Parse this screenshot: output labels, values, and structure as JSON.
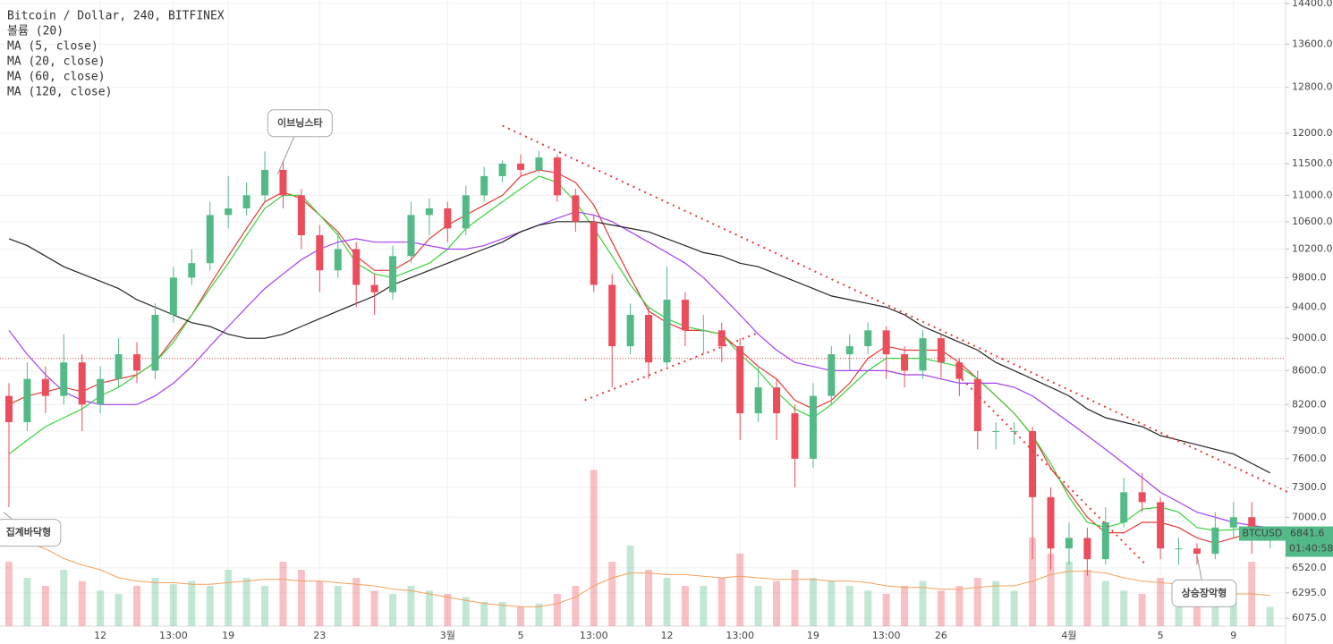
{
  "chart_data": {
    "type": "candlestick",
    "title": "Bitcoin / Dollar, 240, BITFINEX",
    "log_scale": true,
    "grid": true,
    "ylim": [
      6008,
      14470
    ],
    "yticks": [
      {
        "value": 14400,
        "label": "14400.0"
      },
      {
        "value": 13600,
        "label": "13600.0"
      },
      {
        "value": 12800,
        "label": "12800.0"
      },
      {
        "value": 12000,
        "label": "12000.0"
      },
      {
        "value": 11500,
        "label": "11500.0"
      },
      {
        "value": 11000,
        "label": "11000.0"
      },
      {
        "value": 10600,
        "label": "10600.0"
      },
      {
        "value": 10200,
        "label": "10200.0"
      },
      {
        "value": 9800,
        "label": "9800.0"
      },
      {
        "value": 9400,
        "label": "9400.0"
      },
      {
        "value": 9000,
        "label": "9000.0"
      },
      {
        "value": 8600,
        "label": "8600.0"
      },
      {
        "value": 8200,
        "label": "8200.0"
      },
      {
        "value": 7900,
        "label": "7900.0"
      },
      {
        "value": 7600,
        "label": "7600.0"
      },
      {
        "value": 7300,
        "label": "7300.0"
      },
      {
        "value": 7000,
        "label": "7000.0"
      },
      {
        "value": 6520,
        "label": "6520.0"
      },
      {
        "value": 6295,
        "label": "6295.0"
      },
      {
        "value": 6075,
        "label": "6075.0"
      }
    ],
    "categories": [
      null,
      null,
      null,
      null,
      null,
      "12",
      null,
      null,
      null,
      "13:00",
      null,
      null,
      "19",
      null,
      null,
      null,
      null,
      "23",
      null,
      null,
      null,
      null,
      null,
      null,
      "3월",
      null,
      null,
      null,
      "5",
      null,
      null,
      null,
      "13:00",
      null,
      null,
      null,
      "12",
      null,
      null,
      null,
      "13:00",
      null,
      null,
      null,
      "19",
      null,
      null,
      null,
      "13:00",
      null,
      null,
      "26",
      null,
      null,
      null,
      null,
      null,
      null,
      "4월",
      null,
      null,
      null,
      null,
      "5",
      null,
      null,
      null,
      "9",
      null,
      null
    ],
    "candles": {
      "up_color": "#53b987",
      "down_color": "#eb4d5c",
      "open": [
        8300,
        8000,
        8500,
        8300,
        8700,
        8200,
        8500,
        8800,
        8600,
        9300,
        9800,
        10000,
        10700,
        10800,
        11000,
        11400,
        11000,
        10400,
        9900,
        10200,
        9700,
        9600,
        10100,
        10700,
        10800,
        10500,
        11000,
        11300,
        11500,
        11400,
        11600,
        11000,
        10600,
        9700,
        8900,
        9300,
        8700,
        9500,
        9100,
        9100,
        8900,
        8100,
        8400,
        8100,
        7600,
        8300,
        8800,
        8900,
        9100,
        8800,
        8600,
        9000,
        8700,
        8500,
        7900,
        7900,
        7900,
        7200,
        6700,
        6800,
        6600,
        6950,
        7250,
        7150,
        6700,
        6700,
        6650,
        6900,
        7000,
        6800
      ],
      "high": [
        8450,
        8700,
        8650,
        9050,
        8800,
        8650,
        9000,
        8950,
        9450,
        9950,
        10200,
        10900,
        11300,
        11200,
        11700,
        11550,
        11100,
        10550,
        10450,
        10300,
        9850,
        10250,
        10900,
        10950,
        10900,
        11150,
        11450,
        11550,
        11650,
        11700,
        11650,
        11100,
        10700,
        9850,
        9450,
        9400,
        9950,
        9600,
        9300,
        9200,
        9000,
        8650,
        8500,
        8200,
        8450,
        8900,
        9050,
        9200,
        9150,
        8900,
        9100,
        9050,
        8750,
        8600,
        8000,
        8000,
        7950,
        7300,
        6950,
        6900,
        7100,
        7400,
        7450,
        7200,
        6800,
        6750,
        7050,
        7150,
        7150,
        6900
      ],
      "low": [
        7100,
        7900,
        8100,
        8200,
        7900,
        8100,
        8400,
        8450,
        8500,
        9200,
        9700,
        9900,
        10500,
        10700,
        10900,
        10800,
        10200,
        9600,
        9800,
        9400,
        9300,
        9500,
        10000,
        10400,
        10300,
        10400,
        10900,
        11200,
        11300,
        11350,
        10900,
        10450,
        9600,
        8400,
        8800,
        8500,
        8650,
        8900,
        8800,
        8700,
        7800,
        8000,
        7800,
        7300,
        7500,
        8200,
        8600,
        8800,
        8500,
        8400,
        8500,
        8500,
        8300,
        7700,
        7700,
        7750,
        6600,
        6500,
        6550,
        6450,
        6550,
        6900,
        7050,
        6600,
        6550,
        6550,
        6600,
        6800,
        6650,
        6700
      ],
      "close": [
        8000,
        8500,
        8300,
        8700,
        8200,
        8500,
        8800,
        8600,
        9300,
        9800,
        10000,
        10700,
        10800,
        11000,
        11400,
        11000,
        10400,
        9900,
        10200,
        9700,
        9600,
        10100,
        10700,
        10800,
        10500,
        11000,
        11300,
        11500,
        11400,
        11600,
        11000,
        10600,
        9700,
        8900,
        9300,
        8700,
        9500,
        9100,
        9100,
        8900,
        8100,
        8400,
        8100,
        7600,
        8300,
        8800,
        8900,
        9100,
        8800,
        8600,
        9000,
        8700,
        8500,
        7900,
        7900,
        7900,
        7200,
        6700,
        6800,
        6600,
        6950,
        7250,
        7150,
        6700,
        6700,
        6650,
        6900,
        7000,
        6800,
        6840
      ]
    },
    "series": [
      {
        "name": "MA (5, close)",
        "color": "#e53935",
        "values": [
          8200,
          8300,
          8350,
          8400,
          8350,
          8450,
          8500,
          8550,
          8700,
          9000,
          9300,
          9700,
          10100,
          10500,
          10900,
          11050,
          10950,
          10700,
          10450,
          10100,
          9900,
          9900,
          10050,
          10350,
          10550,
          10700,
          10850,
          11000,
          11300,
          11400,
          11350,
          11200,
          10850,
          10300,
          9800,
          9350,
          9200,
          9100,
          9100,
          9050,
          8850,
          8650,
          8500,
          8250,
          8150,
          8250,
          8450,
          8750,
          8900,
          8850,
          8850,
          8850,
          8700,
          8500,
          8300,
          8100,
          7850,
          7500,
          7250,
          7000,
          6850,
          6850,
          6950,
          6950,
          6900,
          6800,
          6750,
          6800,
          6850,
          6860
        ]
      },
      {
        "name": "MA (20, close)",
        "color": "#3ad13a",
        "values": [
          7650,
          7800,
          7950,
          8050,
          8150,
          8300,
          8400,
          8550,
          8700,
          8950,
          9300,
          9650,
          10000,
          10400,
          10800,
          11000,
          11000,
          10700,
          10400,
          10000,
          9850,
          9800,
          9900,
          10000,
          10200,
          10500,
          10700,
          10900,
          11100,
          11300,
          11200,
          10900,
          10500,
          10100,
          9700,
          9400,
          9250,
          9150,
          9100,
          9050,
          8800,
          8600,
          8350,
          8150,
          8050,
          8200,
          8400,
          8600,
          8750,
          8750,
          8750,
          8700,
          8650,
          8500,
          8300,
          8100,
          7850,
          7550,
          7200,
          6950,
          6900,
          6950,
          7080,
          7100,
          7050,
          6900,
          6870,
          6880,
          6900,
          6900
        ]
      },
      {
        "name": "MA (60, close)",
        "color": "#a43ef0",
        "values": [
          9100,
          8800,
          8550,
          8350,
          8250,
          8200,
          8200,
          8200,
          8300,
          8450,
          8650,
          8900,
          9150,
          9400,
          9650,
          9850,
          10050,
          10200,
          10300,
          10350,
          10300,
          10300,
          10300,
          10250,
          10200,
          10200,
          10250,
          10350,
          10450,
          10550,
          10650,
          10750,
          10700,
          10600,
          10450,
          10300,
          10150,
          10000,
          9800,
          9550,
          9300,
          9050,
          8850,
          8700,
          8650,
          8600,
          8600,
          8600,
          8600,
          8550,
          8550,
          8500,
          8450,
          8450,
          8450,
          8400,
          8300,
          8150,
          8000,
          7850,
          7700,
          7550,
          7400,
          7250,
          7150,
          7050,
          7000,
          6950,
          6920,
          6900
        ]
      },
      {
        "name": "MA (120, close)",
        "color": "#222222",
        "values": [
          10350,
          10250,
          10100,
          9950,
          9850,
          9750,
          9650,
          9500,
          9400,
          9300,
          9200,
          9150,
          9050,
          9000,
          9000,
          9050,
          9150,
          9250,
          9350,
          9450,
          9550,
          9700,
          9800,
          9900,
          10000,
          10100,
          10200,
          10300,
          10450,
          10550,
          10600,
          10600,
          10600,
          10550,
          10500,
          10450,
          10350,
          10250,
          10150,
          10100,
          10000,
          9950,
          9850,
          9750,
          9650,
          9550,
          9500,
          9450,
          9400,
          9300,
          9150,
          9050,
          8950,
          8850,
          8700,
          8600,
          8500,
          8400,
          8300,
          8150,
          8050,
          8000,
          7950,
          7850,
          7800,
          7750,
          7700,
          7650,
          7550,
          7450
        ]
      }
    ],
    "volume": {
      "name": "볼륨 (20)",
      "ylim": [
        0,
        100
      ],
      "ma_color": "#f5a05a",
      "values": [
        40,
        30,
        25,
        35,
        28,
        22,
        20,
        25,
        30,
        26,
        28,
        25,
        35,
        30,
        25,
        40,
        35,
        28,
        25,
        30,
        22,
        20,
        25,
        22,
        20,
        18,
        15,
        15,
        12,
        14,
        20,
        25,
        97,
        40,
        50,
        35,
        30,
        25,
        25,
        30,
        45,
        25,
        28,
        35,
        30,
        28,
        25,
        22,
        20,
        25,
        28,
        22,
        25,
        30,
        28,
        22,
        55,
        45,
        40,
        35,
        28,
        22,
        20,
        30,
        25,
        22,
        18,
        15,
        40,
        12
      ],
      "ma": [
        55,
        52,
        48,
        42,
        38,
        35,
        30,
        28,
        27,
        27,
        26,
        26,
        27,
        28,
        29,
        29,
        28,
        28,
        27,
        26,
        25,
        23,
        22,
        20,
        18,
        16,
        14,
        13,
        12,
        12,
        14,
        18,
        25,
        30,
        33,
        33,
        32,
        32,
        31,
        30,
        31,
        30,
        29,
        29,
        29,
        28,
        28,
        27,
        25,
        24,
        24,
        23,
        23,
        24,
        25,
        25,
        28,
        32,
        34,
        34,
        33,
        30,
        28,
        27,
        26,
        24,
        22,
        20,
        20,
        19
      ]
    },
    "price_line": 8750,
    "trendlines": [
      {
        "x": [
          27,
          70
        ],
        "y": [
          12130,
          7250
        ]
      },
      {
        "x": [
          31.5,
          41.1
        ],
        "y": [
          8250,
          9080
        ]
      },
      {
        "x": [
          51.9,
          62.2
        ],
        "y": [
          8550,
          6550
        ]
      }
    ],
    "annotations": [
      {
        "text": "이브닝스타",
        "x": 14.7,
        "y": 11330
      },
      {
        "text": "상승장악형",
        "x": 65,
        "y": 6640
      },
      {
        "text": "집계바닥형",
        "x": -0.3,
        "y": 7050
      }
    ],
    "last_price": {
      "symbol": "BTCUSD",
      "value": 6841.6,
      "countdown": "01:40:58"
    }
  }
}
